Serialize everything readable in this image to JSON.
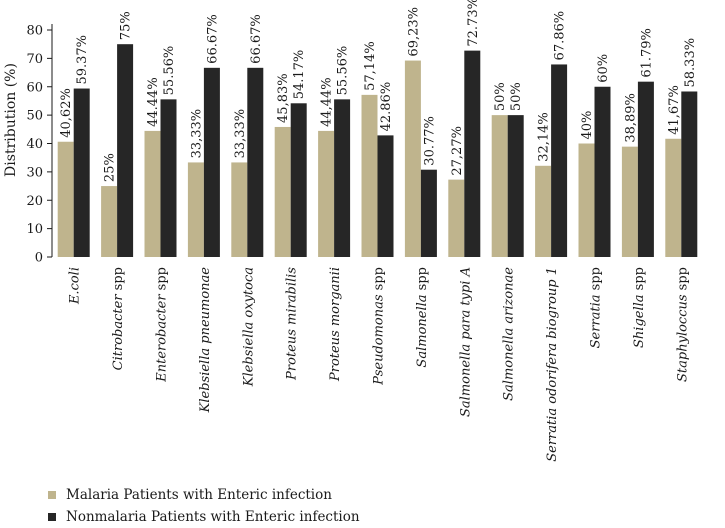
{
  "chart_data": {
    "type": "bar",
    "ylabel": "Distribution (%)",
    "ylim": [
      0,
      80
    ],
    "yticks": [
      0,
      10,
      20,
      30,
      40,
      50,
      60,
      70,
      80
    ],
    "categories": [
      {
        "italic": "E.coli",
        "roman": ""
      },
      {
        "italic": "Citrobacter",
        "roman": " spp"
      },
      {
        "italic": "Enterobacter",
        "roman": " spp"
      },
      {
        "italic": "Klebsiella pneumonae",
        "roman": ""
      },
      {
        "italic": "Klebsiella oxytoca",
        "roman": ""
      },
      {
        "italic": "Proteus mirabilis",
        "roman": ""
      },
      {
        "italic": "Proteus morganii",
        "roman": ""
      },
      {
        "italic": "Pseudomonas",
        "roman": " spp"
      },
      {
        "italic": "Salmonella",
        "roman": " spp"
      },
      {
        "italic": "Salmonella para typi A",
        "roman": ""
      },
      {
        "italic": "Salmonella arizonae",
        "roman": ""
      },
      {
        "italic": "Serratia odorifera biogroup 1",
        "roman": ""
      },
      {
        "italic": "Serratia",
        "roman": " spp"
      },
      {
        "italic": "Shigella",
        "roman": " spp"
      },
      {
        "italic": "Staphyloccus",
        "roman": " spp"
      }
    ],
    "series": [
      {
        "name": "Malaria Patients with Enteric infection",
        "color": "#bfb48d",
        "values": [
          40.62,
          25,
          44.44,
          33.33,
          33.33,
          45.83,
          44.44,
          57.14,
          69.23,
          27.27,
          50,
          32.14,
          40,
          38.89,
          41.67
        ],
        "labels": [
          "40,62%",
          "25%",
          "44.44%",
          "33,33%",
          "33,33%",
          "45,83%",
          "44,44%",
          "57,14%",
          "69,23%",
          "27,27%",
          "50%",
          "32,14%",
          "40%",
          "38,89%",
          "41,67%"
        ]
      },
      {
        "name": "Nonmalaria Patients with Enteric infection",
        "color": "#262626",
        "values": [
          59.37,
          75,
          55.56,
          66.67,
          66.67,
          54.17,
          55.56,
          42.86,
          30.77,
          72.73,
          50,
          67.86,
          60,
          61.79,
          58.33
        ],
        "labels": [
          "59.37%",
          "75%",
          "55.56%",
          "66.67%",
          "66.67%",
          "54.17%",
          "55.56%",
          "42.86%",
          "30.77%",
          "72.73%",
          "50%",
          "67.86%",
          "60%",
          "61.79%",
          "58.33%"
        ]
      }
    ]
  }
}
